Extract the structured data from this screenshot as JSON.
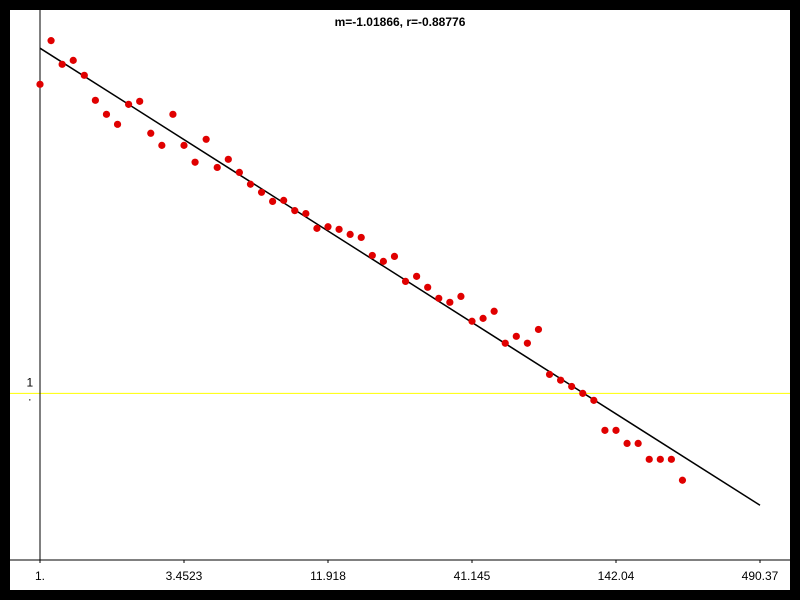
{
  "chart_data": {
    "type": "scatter",
    "title": "m=-1.01866, r=-0.88776",
    "log_x": true,
    "log_y": true,
    "grid": true,
    "grid_color": "#ffff00",
    "color": "#e00000",
    "x": [
      1,
      1.1,
      1.21,
      1.331,
      1.4641,
      1.6105,
      1.7716,
      1.9487,
      2.1436,
      2.3579,
      2.5937,
      2.8531,
      3.1384,
      3.4523,
      3.7975,
      4.1772,
      4.595,
      5.0545,
      5.5599,
      6.1159,
      6.7275,
      7.4002,
      8.1403,
      8.9543,
      9.8497,
      10.835,
      11.918,
      13.11,
      14.421,
      15.863,
      17.449,
      19.194,
      21.114,
      23.225,
      25.548,
      28.102,
      30.913,
      34.004,
      37.404,
      41.145,
      45.259,
      49.785,
      54.764,
      60.24,
      66.264,
      72.89,
      80.18,
      88.197,
      97.017,
      106.72,
      117.39,
      129.13,
      142.04,
      156.25,
      171.87,
      189.06,
      207.97,
      228.76,
      251.64
    ],
    "values": [
      71.6,
      131,
      94.4,
      99.7,
      81.1,
      57.4,
      47.3,
      41.2,
      54.3,
      56.6,
      36.4,
      30.8,
      47.3,
      30.8,
      24.4,
      33.5,
      22.7,
      25.4,
      21.2,
      18.0,
      16.1,
      14.2,
      14.4,
      12.5,
      12.0,
      9.78,
      10.0,
      9.65,
      9.0,
      8.63,
      6.73,
      6.2,
      6.64,
      4.7,
      5.04,
      4.33,
      3.72,
      3.52,
      3.82,
      2.71,
      2.82,
      3.11,
      2.0,
      2.2,
      2.0,
      2.42,
      1.3,
      1.2,
      1.1,
      1.0,
      0.908,
      0.6,
      0.6,
      0.501,
      0.501,
      0.402,
      0.402,
      0.402,
      0.301
    ],
    "fit_line": {
      "color": "#000000",
      "x": [
        1,
        490.37
      ],
      "values": [
        118,
        0.213
      ]
    },
    "xlim": [
      1,
      490.37
    ],
    "ylim": [
      0.1,
      200
    ],
    "xticks": [
      {
        "value": 1,
        "label": "1."
      },
      3.4523,
      11.918,
      41.145,
      142.04,
      490.37
    ],
    "yticks": [
      {
        "value": 1,
        "label": "1."
      }
    ]
  }
}
